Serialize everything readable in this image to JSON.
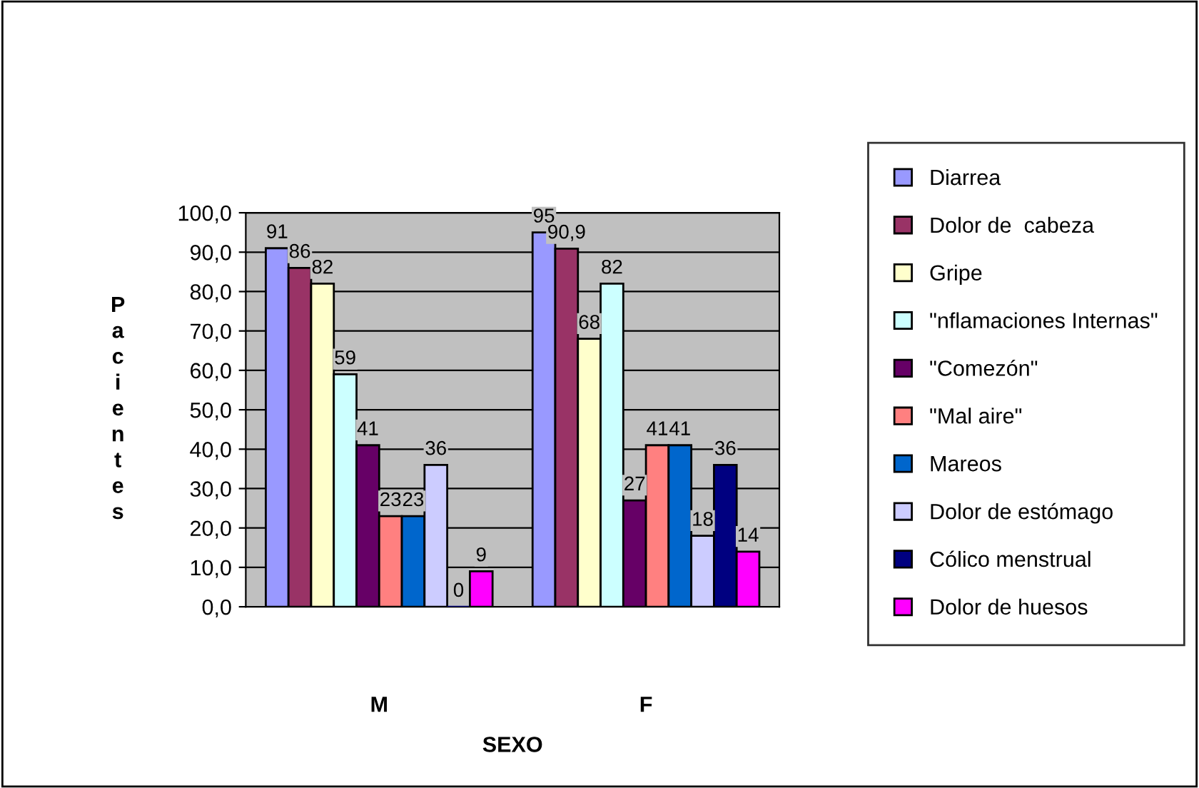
{
  "chart_data": {
    "type": "bar",
    "xlabel": "SEXO",
    "ylabel": "Pacientes",
    "categories": [
      "M",
      "F"
    ],
    "series": [
      {
        "name": "Diarrea",
        "color": "#9999ff",
        "values": [
          91,
          95
        ],
        "value_labels": [
          "91",
          "95"
        ]
      },
      {
        "name": "Dolor de  cabeza",
        "color": "#993366",
        "values": [
          86,
          90.9
        ],
        "value_labels": [
          "86",
          "90,9"
        ]
      },
      {
        "name": "Gripe",
        "color": "#ffffcc",
        "values": [
          82,
          68
        ],
        "value_labels": [
          "82",
          "68"
        ]
      },
      {
        "name": "\"nflamaciones Internas\"",
        "color": "#ccffff",
        "values": [
          59,
          82
        ],
        "value_labels": [
          "59",
          "82"
        ]
      },
      {
        "name": "\"Comezón\"",
        "color": "#660066",
        "values": [
          41,
          27
        ],
        "value_labels": [
          "41",
          "27"
        ]
      },
      {
        "name": "\"Mal aire\"",
        "color": "#ff8080",
        "values": [
          23,
          41
        ],
        "value_labels": [
          "23",
          "41"
        ]
      },
      {
        "name": "Mareos",
        "color": "#0066cc",
        "values": [
          23,
          41
        ],
        "value_labels": [
          "23",
          "41"
        ]
      },
      {
        "name": "Dolor de estómago",
        "color": "#ccccff",
        "values": [
          36,
          18
        ],
        "value_labels": [
          "36",
          "18"
        ]
      },
      {
        "name": "Cólico menstrual",
        "color": "#000080",
        "values": [
          0,
          36
        ],
        "value_labels": [
          "0",
          "36"
        ]
      },
      {
        "name": "Dolor de huesos",
        "color": "#ff00ff",
        "values": [
          9,
          14
        ],
        "value_labels": [
          "9",
          "14"
        ]
      }
    ],
    "ylim": [
      0,
      100
    ],
    "yticks": [
      {
        "value": 0,
        "label": "0,0"
      },
      {
        "value": 10,
        "label": "10,0"
      },
      {
        "value": 20,
        "label": "20,0"
      },
      {
        "value": 30,
        "label": "30,0"
      },
      {
        "value": 40,
        "label": "40,0"
      },
      {
        "value": 50,
        "label": "50,0"
      },
      {
        "value": 60,
        "label": "60,0"
      },
      {
        "value": 70,
        "label": "70,0"
      },
      {
        "value": 80,
        "label": "80,0"
      },
      {
        "value": 90,
        "label": "90,0"
      },
      {
        "value": 100,
        "label": "100,0"
      }
    ],
    "grid": "y",
    "legend": "right"
  }
}
